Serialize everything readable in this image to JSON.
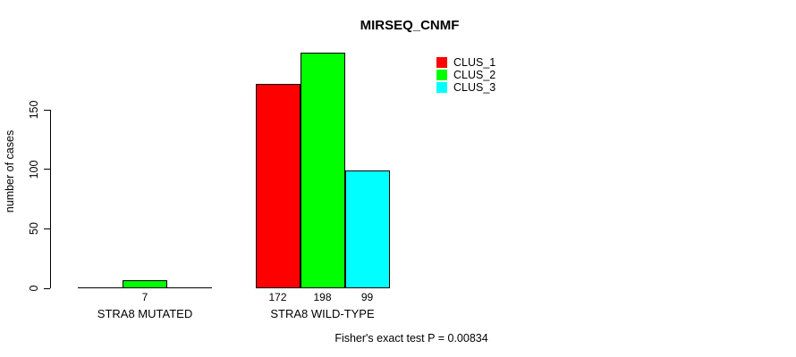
{
  "chart_data": {
    "type": "bar",
    "title": "MIRSEQ_CNMF",
    "ylabel": "number of cases",
    "xlabel": "",
    "yticks": [
      0,
      50,
      100,
      150
    ],
    "ylim": [
      0,
      200
    ],
    "grid": false,
    "legend_position": "top-right",
    "categories": [
      "STRA8 MUTATED",
      "STRA8 WILD-TYPE"
    ],
    "series": [
      {
        "name": "CLUS_1",
        "color": "#ff0000",
        "values": [
          0,
          172
        ]
      },
      {
        "name": "CLUS_2",
        "color": "#00ff00",
        "values": [
          7,
          198
        ]
      },
      {
        "name": "CLUS_3",
        "color": "#00ffff",
        "values": [
          0,
          99
        ]
      }
    ],
    "bar_value_labels": [
      [
        "",
        "7",
        ""
      ],
      [
        "172",
        "198",
        "99"
      ]
    ],
    "annotation": "Fisher's exact test P = 0.00834"
  },
  "colors": {
    "clus_1": "#ff0000",
    "clus_2": "#00ff00",
    "clus_3": "#00ffff",
    "axis": "#000000",
    "background": "#ffffff"
  }
}
